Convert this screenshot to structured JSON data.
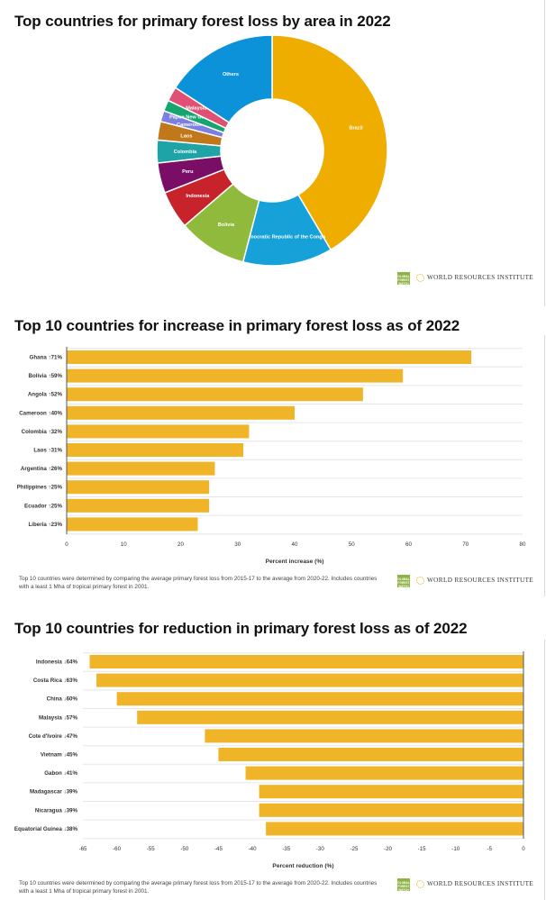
{
  "branding": {
    "gfw_logo_text": "GLOBAL FOREST WATCH",
    "org_name": "WORLD RESOURCES INSTITUTE"
  },
  "chart_data": [
    {
      "type": "pie",
      "title": "Top countries for primary forest loss by area in 2022",
      "slices": [
        {
          "label": "Brazil",
          "value": 43.0,
          "color": "#efad00"
        },
        {
          "label": "Democratic Republic of the Congo",
          "value": 13.0,
          "color": "#16a2d8"
        },
        {
          "label": "Bolivia",
          "value": 10.0,
          "color": "#8fba3c"
        },
        {
          "label": "Indonesia",
          "value": 5.5,
          "color": "#c8222a"
        },
        {
          "label": "Peru",
          "value": 4.4,
          "color": "#7a0d66"
        },
        {
          "label": "Colombia",
          "value": 3.3,
          "color": "#1ea3a6"
        },
        {
          "label": "Laos",
          "value": 2.7,
          "color": "#c1781a"
        },
        {
          "label": "Cameroon",
          "value": 1.6,
          "color": "#7d7fe0"
        },
        {
          "label": "Papua New Guinea",
          "value": 1.6,
          "color": "#16a56f"
        },
        {
          "label": "Malaysia",
          "value": 2.1,
          "color": "#e05075"
        },
        {
          "label": "Others",
          "value": 16.4,
          "color": "#0b92d8"
        }
      ]
    },
    {
      "type": "bar",
      "orientation": "horizontal",
      "title": "Top 10 countries for increase in primary forest loss as of 2022",
      "xlabel": "Percent increase (%)",
      "xlim": [
        0,
        80
      ],
      "xticks": [
        0,
        10,
        20,
        30,
        40,
        50,
        60,
        70,
        80
      ],
      "categories": [
        "Ghana ↑71%",
        "Bolivia ↑59%",
        "Angola ↑52%",
        "Cameroon ↑40%",
        "Colombia ↑32%",
        "Laos ↑31%",
        "Argentina ↑26%",
        "Philippines ↑25%",
        "Ecuador ↑25%",
        "Liberia ↑23%"
      ],
      "values": [
        71,
        59,
        52,
        40,
        32,
        31,
        26,
        25,
        25,
        23
      ],
      "color": "#f0b429",
      "note": "Top 10 countries were determined by comparing the average primary forest loss from 2015-17 to the average from 2020-22. Includes countries with a least 1 Mha of tropical primary forest in 2001."
    },
    {
      "type": "bar",
      "orientation": "horizontal",
      "title": "Top 10 countries for reduction in primary forest loss as of 2022",
      "xlabel": "Percent reduction (%)",
      "xlim": [
        -65,
        0
      ],
      "xticks": [
        -65,
        -60,
        -55,
        -50,
        -45,
        -40,
        -35,
        -30,
        -25,
        -20,
        -15,
        -10,
        -5,
        0
      ],
      "categories": [
        "Indonesia ↓64%",
        "Costa Rica ↓63%",
        "China ↓60%",
        "Malaysia ↓57%",
        "Cote d'Ivoire ↓47%",
        "Vietnam ↓45%",
        "Gabon ↓41%",
        "Madagascar ↓39%",
        "Nicaragua ↓39%",
        "Equatorial Guinea ↓38%"
      ],
      "values": [
        -64,
        -63,
        -60,
        -57,
        -47,
        -45,
        -41,
        -39,
        -39,
        -38
      ],
      "color": "#f0b429",
      "note": "Top 10 countries were determined by comparing the average primary forest loss from 2015-17 to the average from 2020-22. Includes countries with a least 1 Mha of tropical primary forest in 2001."
    }
  ]
}
